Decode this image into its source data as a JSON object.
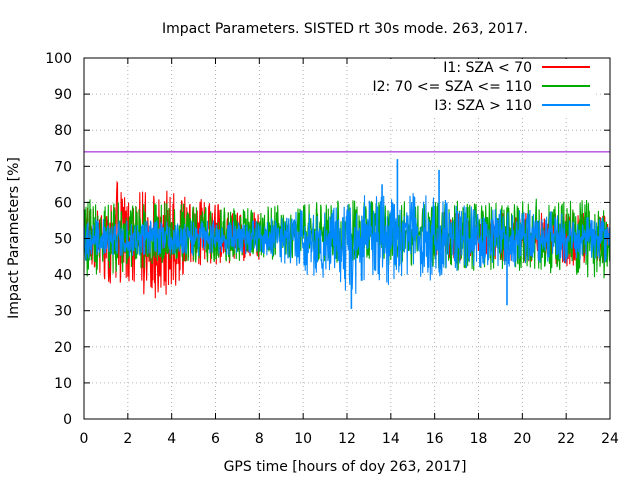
{
  "chart_data": {
    "type": "line",
    "title": "Impact Parameters. SISTED rt 30s mode. 263, 2017.",
    "xlabel": "GPS time [hours of doy 263, 2017]",
    "ylabel": "Impact Parameters [%]",
    "xlim": [
      0,
      24
    ],
    "ylim": [
      0,
      100
    ],
    "xticks": [
      0,
      2,
      4,
      6,
      8,
      10,
      12,
      14,
      16,
      18,
      20,
      22,
      24
    ],
    "yticks": [
      0,
      10,
      20,
      30,
      40,
      50,
      60,
      70,
      80,
      90,
      100
    ],
    "grid": true,
    "legend_position": "top-right",
    "reference_line": {
      "y": 74,
      "color": "#9400d3"
    },
    "series": [
      {
        "name": "I1: SZA < 70",
        "color": "#ff0000",
        "segments": [
          {
            "x": [
              0,
              0.5,
              1,
              1.5,
              2,
              2.5,
              3,
              3.5,
              4,
              4.5,
              5,
              5.5,
              6,
              6.5,
              7,
              7.5,
              8
            ],
            "upper": [
              60,
              58,
              62,
              67,
              65,
              63,
              64,
              61,
              65,
              62,
              60,
              62,
              60,
              58,
              59,
              58,
              57
            ],
            "lower": [
              40,
              42,
              38,
              34,
              36,
              37,
              31,
              35,
              33,
              40,
              42,
              42,
              42,
              43,
              43,
              44,
              44
            ]
          },
          {
            "x": [
              16,
              17,
              18,
              19,
              20,
              21,
              22,
              23,
              24
            ],
            "upper": [
              58,
              57,
              57,
              58,
              58,
              57,
              58,
              58,
              57
            ],
            "lower": [
              44,
              43,
              44,
              43,
              43,
              44,
              42,
              41,
              43
            ]
          }
        ]
      },
      {
        "name": "I2: 70 <= SZA <= 110",
        "color": "#00aa00",
        "segments": [
          {
            "x": [
              0,
              2,
              4,
              6,
              8,
              10,
              12,
              14,
              16,
              18,
              20,
              22,
              24
            ],
            "upper": [
              61,
              60,
              60,
              59,
              59,
              60,
              61,
              60,
              61,
              60,
              61,
              62,
              60
            ],
            "lower": [
              38,
              41,
              43,
              43,
              44,
              44,
              43,
              42,
              41,
              41,
              41,
              40,
              38
            ]
          }
        ]
      },
      {
        "name": "I3: SZA > 110",
        "color": "#0088ff",
        "segments": [
          {
            "x": [
              0,
              2,
              4,
              6,
              8,
              9,
              10,
              11,
              12,
              13,
              14,
              15,
              16,
              17,
              18,
              19,
              20,
              21,
              22,
              23,
              24
            ],
            "upper": [
              56,
              55,
              55,
              55,
              55,
              57,
              59,
              59,
              61,
              63,
              66,
              63,
              62,
              60,
              59,
              58,
              58,
              58,
              58,
              57,
              56
            ],
            "lower": [
              43,
              45,
              45,
              45,
              45,
              43,
              40,
              39,
              33,
              36,
              37,
              39,
              38,
              40,
              42,
              42,
              42,
              43,
              43,
              44,
              43
            ]
          }
        ],
        "spikes": [
          {
            "x": 12.2,
            "y": 30.5
          },
          {
            "x": 14.3,
            "y": 72
          },
          {
            "x": 16.2,
            "y": 69
          },
          {
            "x": 19.3,
            "y": 31.5
          },
          {
            "x": 13.6,
            "y": 65
          }
        ]
      }
    ]
  }
}
